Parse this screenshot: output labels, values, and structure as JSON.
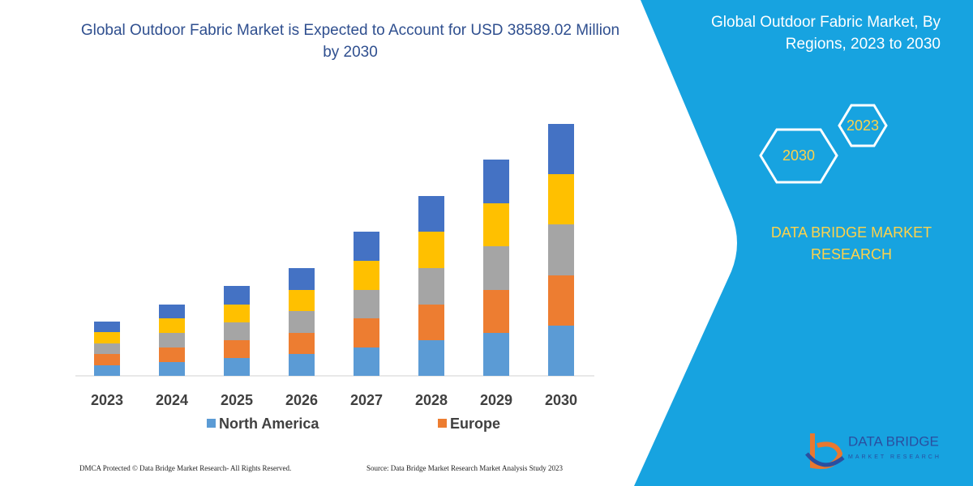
{
  "chart_data": {
    "type": "stacked_bar",
    "title": "Global Outdoor Fabric Market is Expected to Account for USD 38589.02 Million by 2030",
    "categories": [
      "2023",
      "2024",
      "2025",
      "2026",
      "2027",
      "2028",
      "2029",
      "2030"
    ],
    "series": [
      {
        "name": "North America",
        "color": "#5b9bd5",
        "values": [
          13,
          17,
          22,
          27,
          35,
          44,
          53,
          62
        ]
      },
      {
        "name": "Europe",
        "color": "#ed7d31",
        "values": [
          14,
          18,
          22,
          26,
          36,
          44,
          53,
          62
        ]
      },
      {
        "name": null,
        "color": "#a5a5a5",
        "values": [
          13,
          18,
          22,
          27,
          35,
          45,
          54,
          63
        ]
      },
      {
        "name": null,
        "color": "#ffc000",
        "values": [
          14,
          18,
          22,
          26,
          36,
          45,
          53,
          62
        ]
      },
      {
        "name": null,
        "color": "#4472c4",
        "values": [
          13,
          17,
          23,
          27,
          36,
          44,
          54,
          62
        ]
      }
    ]
  },
  "panel": {
    "title": "Global Outdoor Fabric Market, By Regions, 2023 to 2030",
    "hex_labels": [
      "2023",
      "2030"
    ],
    "brand": "DATA BRIDGE MARKET RESEARCH"
  },
  "logo": {
    "name": "DATA BRIDGE",
    "tagline": "MARKET RESEARCH"
  },
  "footer": {
    "left": "DMCA Protected © Data Bridge Market Research-  All Rights Reserved.",
    "right": "Source: Data Bridge Market Research  Market Analysis Study 2023"
  }
}
